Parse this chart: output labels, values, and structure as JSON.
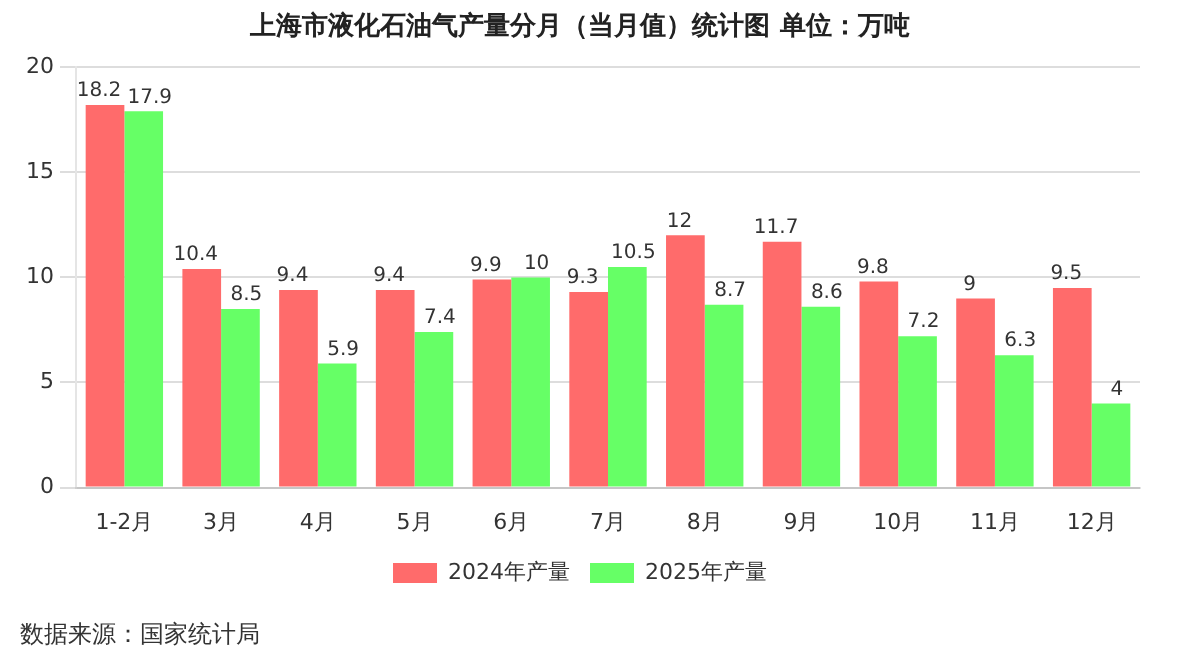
{
  "chart_data": {
    "type": "bar",
    "title": "上海市液化石油气产量分月（当月值）统计图 单位：万吨",
    "categories": [
      "1-2月",
      "3月",
      "4月",
      "5月",
      "6月",
      "7月",
      "8月",
      "9月",
      "10月",
      "11月",
      "12月"
    ],
    "series": [
      {
        "name": "2024年产量",
        "color": "#ff6b6b",
        "values": [
          18.2,
          10.4,
          9.4,
          9.4,
          9.9,
          9.3,
          12,
          11.7,
          9.8,
          9,
          9.5
        ]
      },
      {
        "name": "2025年产量",
        "color": "#66ff66",
        "values": [
          17.9,
          8.5,
          5.9,
          7.4,
          10,
          10.5,
          8.7,
          8.6,
          7.2,
          6.3,
          4
        ]
      }
    ],
    "ylim": [
      0,
      20
    ],
    "yticks": [
      0,
      5,
      10,
      15,
      20
    ],
    "grid": "y",
    "legend": "bottom",
    "data_labels": true,
    "annotations": [
      "数据来源：国家统计局"
    ]
  }
}
